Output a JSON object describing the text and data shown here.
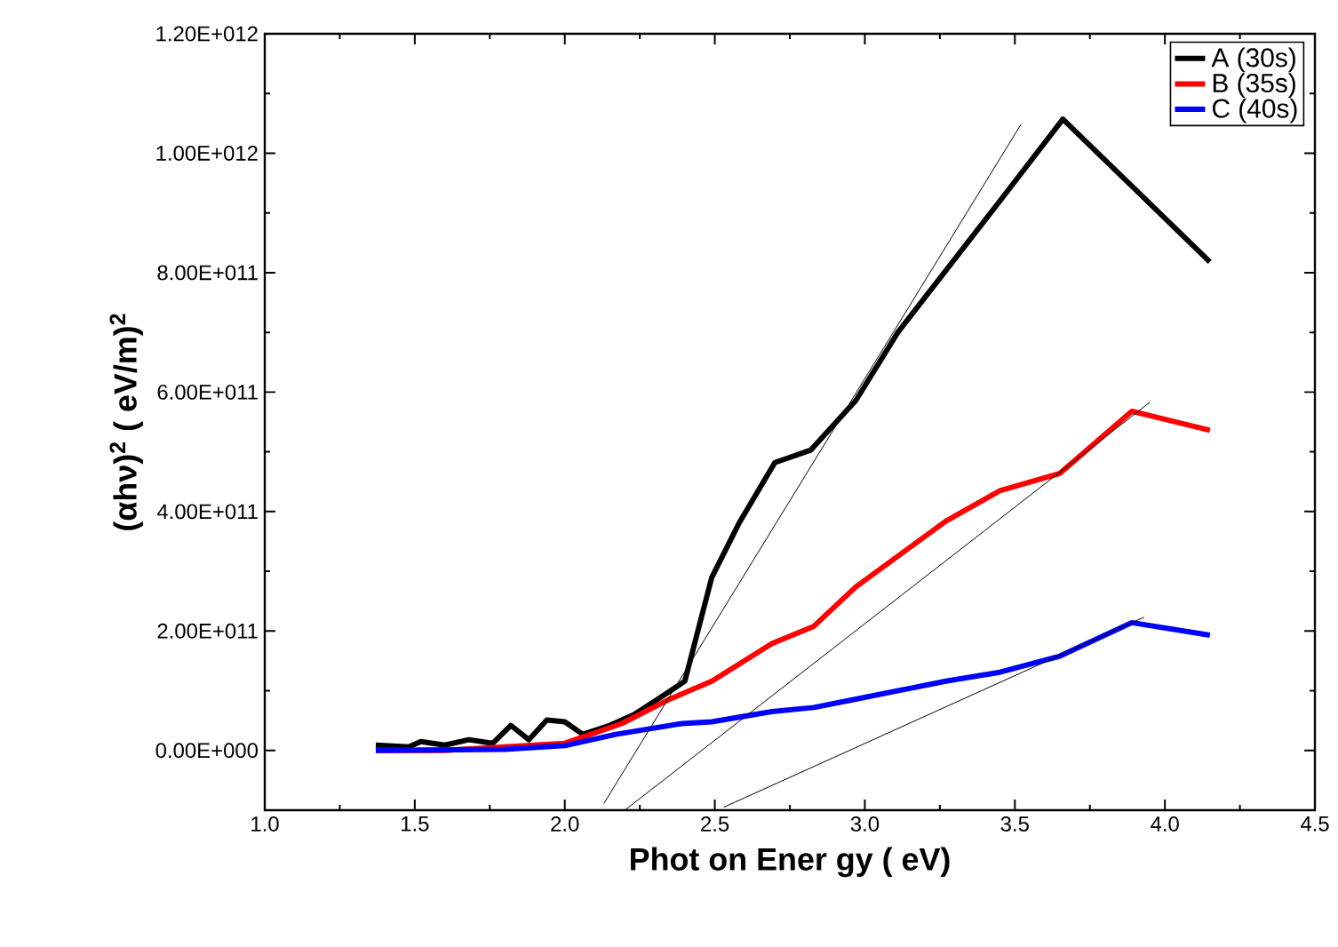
{
  "chart_data": {
    "type": "line",
    "xlabel": "Phot on Ener gy ( eV)",
    "ylabel": "(αhν)$^{2}$ ( eV/m)$^{2}$",
    "xlim": [
      1.0,
      4.5
    ],
    "ylim": [
      -100000000000.0,
      1200000000000.0
    ],
    "xticks": [
      {
        "value": 1.0,
        "label": "1.0"
      },
      {
        "value": 1.5,
        "label": "1.5"
      },
      {
        "value": 2.0,
        "label": "2.0"
      },
      {
        "value": 2.5,
        "label": "2.5"
      },
      {
        "value": 3.0,
        "label": "3.0"
      },
      {
        "value": 3.5,
        "label": "3.5"
      },
      {
        "value": 4.0,
        "label": "4.0"
      },
      {
        "value": 4.5,
        "label": "4.5"
      }
    ],
    "yticks": [
      {
        "value": 0,
        "label": "0.00E+000"
      },
      {
        "value": 200000000000.0,
        "label": "2.00E+011"
      },
      {
        "value": 400000000000.0,
        "label": "4.00E+011"
      },
      {
        "value": 600000000000.0,
        "label": "6.00E+011"
      },
      {
        "value": 800000000000.0,
        "label": "8.00E+011"
      },
      {
        "value": 1000000000000.0,
        "label": "1.00E+012"
      },
      {
        "value": 1200000000000.0,
        "label": "1.20E+012"
      }
    ],
    "legend": "top right",
    "grid": false,
    "marker": "none",
    "line_style": "solid",
    "series": [
      {
        "name": "A (30s)",
        "color": "#000000",
        "x": [
          1.37,
          1.48,
          1.52,
          1.6,
          1.68,
          1.76,
          1.82,
          1.88,
          1.94,
          2.0,
          2.06,
          2.15,
          2.23,
          2.31,
          2.4,
          2.49,
          2.58,
          2.7,
          2.82,
          2.97,
          3.11,
          3.45,
          3.66,
          4.15
        ],
        "values": [
          9000000000.0,
          6000000000.0,
          15000000000.0,
          9000000000.0,
          18000000000.0,
          12000000000.0,
          42000000000.0,
          18000000000.0,
          51000000000.0,
          48000000000.0,
          27000000000.0,
          42000000000.0,
          60000000000.0,
          86000000000.0,
          116000000000.0,
          290000000000.0,
          380000000000.0,
          482000000000.0,
          503000000000.0,
          586000000000.0,
          700000000000.0,
          920000000000.0,
          1057000000000.0,
          818000000000.0
        ]
      },
      {
        "name": "B (35s)",
        "color": "#ff0000",
        "x": [
          1.37,
          1.6,
          1.8,
          2.0,
          2.19,
          2.35,
          2.49,
          2.69,
          2.83,
          2.97,
          3.27,
          3.45,
          3.65,
          3.89,
          4.15
        ],
        "values": [
          0,
          0,
          null,
          12000000000.0,
          45000000000.0,
          86000000000.0,
          116000000000.0,
          179000000000.0,
          208000000000.0,
          274000000000.0,
          384000000000.0,
          435000000000.0,
          464000000000.0,
          568000000000.0,
          536000000000.0
        ]
      },
      {
        "name": "C (40s)",
        "color": "#0000ff",
        "x": [
          1.37,
          1.8,
          2.0,
          2.17,
          2.39,
          2.49,
          2.69,
          2.83,
          2.97,
          3.27,
          3.45,
          3.65,
          3.89,
          4.15
        ],
        "values": [
          0,
          2000000000.0,
          8000000000.0,
          27000000000.0,
          45000000000.0,
          48000000000.0,
          65000000000.0,
          72000000000.0,
          86000000000.0,
          116000000000.0,
          131000000000.0,
          158000000000.0,
          214000000000.0,
          193000000000.0
        ]
      },
      {
        "type": "line",
        "color": "#000000",
        "x": [
          2.13,
          3.52
        ],
        "values": [
          -89000000000.0,
          1048000000000.0
        ]
      },
      {
        "type": "line",
        "color": "#000000",
        "x": [
          2.2,
          3.95
        ],
        "values": [
          -100000000000.0,
          583000000000.0
        ]
      },
      {
        "type": "line",
        "color": "#000000",
        "x": [
          2.53,
          3.93
        ],
        "values": [
          -95000000000.0,
          223000000000.0
        ]
      }
    ]
  }
}
